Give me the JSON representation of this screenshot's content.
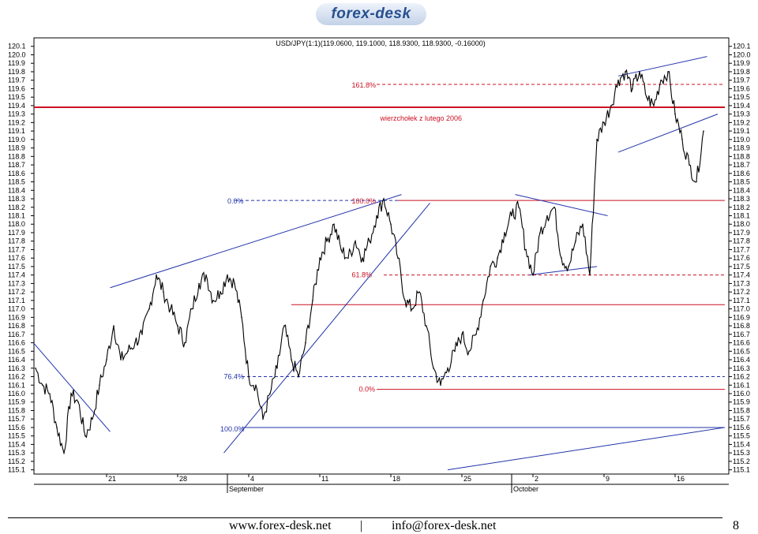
{
  "logo": {
    "text": "forex-desk"
  },
  "footer": {
    "website": "www.forex-desk.net",
    "separator": "|",
    "email": "info@forex-desk.net",
    "page_number": "8"
  },
  "colors": {
    "price": "#000000",
    "trendline": "#2233aa",
    "level": "#cc1122",
    "fib_blue": "#2233aa",
    "fib_red": "#cc1122"
  },
  "chart_data": {
    "type": "line",
    "title": "USD/JPY(1:1)(119.0600, 119.1000, 118.9300, 118.9300, -0.16000)",
    "ylim": [
      115.05,
      120.2
    ],
    "y_ticks": [
      115.1,
      115.2,
      115.3,
      115.4,
      115.5,
      115.6,
      115.7,
      115.8,
      115.9,
      116.0,
      116.1,
      116.2,
      116.3,
      116.4,
      116.5,
      116.6,
      116.7,
      116.8,
      116.9,
      117.0,
      117.1,
      117.2,
      117.3,
      117.4,
      117.5,
      117.6,
      117.7,
      117.8,
      117.9,
      118.0,
      118.1,
      118.2,
      118.3,
      118.4,
      118.5,
      118.6,
      118.7,
      118.8,
      118.9,
      119.0,
      119.1,
      119.2,
      119.3,
      119.4,
      119.5,
      119.6,
      119.7,
      119.8,
      119.9,
      120.0,
      120.1
    ],
    "xlim": [
      0,
      95
    ],
    "x_ticks": [
      {
        "x": 10,
        "label": "21"
      },
      {
        "x": 20,
        "label": "28"
      },
      {
        "x": 30,
        "label": "4"
      },
      {
        "x": 40,
        "label": "11"
      },
      {
        "x": 50,
        "label": "18"
      },
      {
        "x": 60,
        "label": "25"
      },
      {
        "x": 70,
        "label": "2"
      },
      {
        "x": 80,
        "label": "9"
      },
      {
        "x": 90,
        "label": "16"
      }
    ],
    "month_labels": [
      {
        "x": 27,
        "label": "September"
      },
      {
        "x": 67,
        "label": "October"
      }
    ],
    "grid": false,
    "series": [
      {
        "x": [
          0,
          1,
          2,
          3,
          4,
          5,
          6,
          7,
          8,
          9,
          10,
          11,
          12,
          13,
          14,
          15,
          16,
          17,
          18,
          19,
          20,
          21,
          22,
          23,
          24,
          25,
          26,
          27,
          28,
          29,
          30,
          31,
          32,
          33,
          34,
          35,
          36,
          37,
          38,
          39,
          40,
          41,
          42,
          43,
          44,
          45,
          46,
          47,
          48,
          49,
          50,
          51,
          52,
          53,
          54,
          55,
          56,
          57,
          58,
          59,
          60,
          61,
          62,
          63,
          64,
          65,
          66,
          67,
          68,
          69,
          70,
          71,
          72,
          73,
          74,
          75,
          76,
          77,
          78,
          79,
          80,
          81,
          82,
          83,
          84,
          85,
          86,
          87,
          88,
          89,
          90,
          91,
          92,
          93,
          94
        ],
        "values": [
          116.3,
          116.1,
          116.0,
          115.6,
          115.3,
          116.0,
          115.9,
          115.5,
          115.7,
          116.1,
          116.4,
          116.8,
          116.4,
          116.5,
          116.6,
          116.7,
          117.0,
          117.4,
          117.2,
          117.0,
          116.8,
          116.6,
          117.0,
          117.3,
          117.4,
          117.1,
          117.2,
          117.4,
          117.3,
          116.9,
          116.2,
          116.1,
          115.7,
          116.0,
          116.3,
          116.8,
          116.4,
          116.2,
          116.6,
          117.1,
          117.6,
          117.8,
          118.0,
          117.7,
          117.6,
          117.8,
          117.6,
          117.8,
          118.1,
          118.3,
          118.0,
          117.6,
          117.1,
          117.0,
          117.2,
          116.8,
          116.3,
          116.1,
          116.3,
          116.5,
          116.7,
          116.5,
          116.7,
          117.1,
          117.5,
          117.6,
          117.9,
          118.1,
          118.2,
          117.7,
          117.4,
          117.9,
          118.1,
          118.2,
          117.6,
          117.5,
          117.8,
          118.0,
          117.4,
          119.0,
          119.2,
          119.4,
          119.7,
          119.8,
          119.6,
          119.8,
          119.5,
          119.4,
          119.7,
          119.8,
          119.3,
          119.0,
          118.7,
          118.5,
          119.1
        ]
      }
    ],
    "trendlines": [
      {
        "x1": -0.3,
        "y1": 116.6,
        "x2": 10.5,
        "y2": 115.55
      },
      {
        "x1": 10.5,
        "y1": 117.25,
        "x2": 51.5,
        "y2": 118.35
      },
      {
        "x1": 26.5,
        "y1": 115.3,
        "x2": 55.5,
        "y2": 118.25
      },
      {
        "x1": 67.5,
        "y1": 118.35,
        "x2": 80.5,
        "y2": 118.1
      },
      {
        "x1": 69.5,
        "y1": 117.4,
        "x2": 79.0,
        "y2": 117.5
      },
      {
        "x1": 82.0,
        "y1": 119.75,
        "x2": 94.5,
        "y2": 119.98
      },
      {
        "x1": 82.0,
        "y1": 118.85,
        "x2": 96.0,
        "y2": 119.3
      },
      {
        "x1": 58.0,
        "y1": 115.1,
        "x2": 97.0,
        "y2": 115.6
      }
    ],
    "horizontal_levels": [
      {
        "y": 119.38,
        "x1": -1,
        "x2": 97,
        "color": "red",
        "width": 2
      },
      {
        "y": 118.28,
        "x1": 51,
        "x2": 97,
        "color": "red",
        "width": 1
      },
      {
        "y": 117.05,
        "x1": 36,
        "x2": 97,
        "color": "red",
        "width": 1
      },
      {
        "y": 116.05,
        "x1": 48,
        "x2": 97,
        "color": "red",
        "width": 1
      },
      {
        "y": 115.6,
        "x1": 29,
        "x2": 97,
        "color": "blue",
        "width": 1
      }
    ],
    "dashed_levels": [
      {
        "y": 118.28,
        "x1": 28,
        "x2": 51,
        "color": "blue"
      },
      {
        "y": 117.4,
        "x1": 49,
        "x2": 97,
        "color": "red"
      },
      {
        "y": 116.2,
        "x1": 29,
        "x2": 97,
        "color": "blue"
      },
      {
        "y": 119.65,
        "x1": 48,
        "x2": 97,
        "color": "red"
      }
    ],
    "annotations": [
      {
        "text": "161.8%",
        "x": 44.5,
        "y": 119.64,
        "color": "red"
      },
      {
        "text": "wierzchołek z lutego 2006",
        "x": 48.5,
        "y": 119.25,
        "color": "red"
      },
      {
        "text": "0.0%",
        "x": 27.0,
        "y": 118.27,
        "color": "blue"
      },
      {
        "text": "100.0%",
        "x": 44.5,
        "y": 118.27,
        "color": "red"
      },
      {
        "text": "61.8%",
        "x": 44.5,
        "y": 117.4,
        "color": "red"
      },
      {
        "text": "76.4%",
        "x": 26.5,
        "y": 116.2,
        "color": "blue"
      },
      {
        "text": "0.0%",
        "x": 45.5,
        "y": 116.05,
        "color": "red"
      },
      {
        "text": "100.0%",
        "x": 26.0,
        "y": 115.58,
        "color": "blue"
      }
    ]
  }
}
